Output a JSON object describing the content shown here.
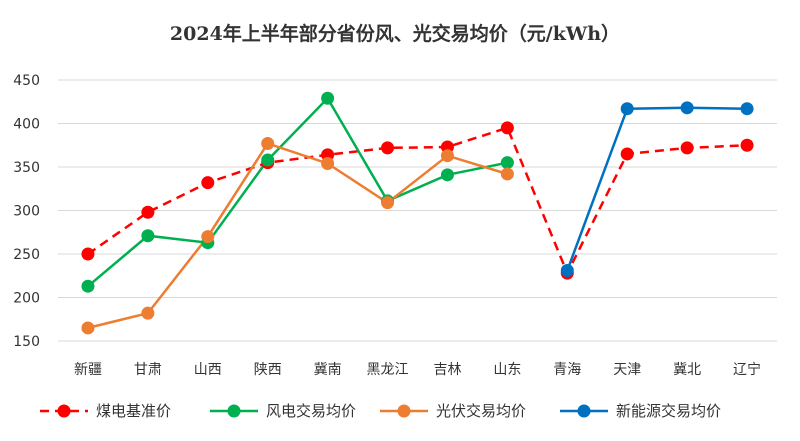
{
  "chart_data": {
    "type": "line",
    "title": "2024年上半年部分省份风、光交易均价（元/kWh）",
    "xlabel": "",
    "ylabel": "",
    "categories": [
      "新疆",
      "甘肃",
      "山西",
      "陕西",
      "冀南",
      "黑龙江",
      "吉林",
      "山东",
      "青海",
      "天津",
      "冀北",
      "辽宁"
    ],
    "y_ticks": [
      "150",
      "200",
      "250",
      "300",
      "350",
      "400",
      "450"
    ],
    "ylim": [
      150,
      450
    ],
    "grid": true,
    "legend_position": "bottom",
    "series": [
      {
        "name": "煤电基准价",
        "color": "#ff0000",
        "dash": true,
        "values": [
          250,
          298,
          332,
          355,
          364,
          372,
          373,
          395,
          228,
          365,
          372,
          375
        ]
      },
      {
        "name": "风电交易均价",
        "color": "#00b050",
        "dash": false,
        "values": [
          213,
          271,
          263,
          358,
          429,
          311,
          341,
          355,
          null,
          null,
          null,
          null
        ]
      },
      {
        "name": "光伏交易均价",
        "color": "#ed7d31",
        "dash": false,
        "values": [
          165,
          182,
          270,
          377,
          354,
          309,
          363,
          342,
          null,
          null,
          null,
          null
        ]
      },
      {
        "name": "新能源交易均价",
        "color": "#0070c0",
        "dash": false,
        "values": [
          null,
          null,
          null,
          null,
          null,
          null,
          null,
          null,
          231,
          417,
          418,
          417
        ]
      }
    ]
  }
}
